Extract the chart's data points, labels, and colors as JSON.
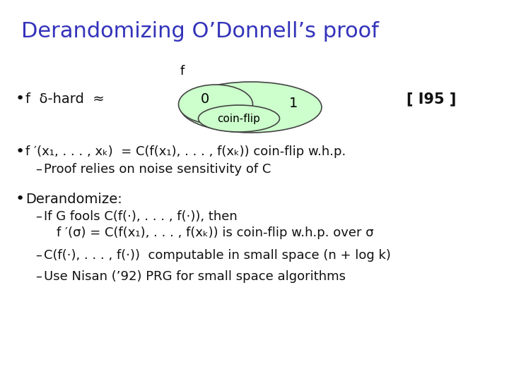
{
  "title": "Derandomizing O’Donnell’s proof",
  "title_color": "#3333bb",
  "title_fontsize": 22,
  "bg_color": "#ffffff",
  "text_color": "#111111",
  "ellipse_fill": "#ccffcc",
  "ellipse_edge": "#444444",
  "font_family": "DejaVu Sans",
  "bullet1_text": "f  δ-hard  ≈",
  "ref_text": "[ I95 ]",
  "ell_f": "f",
  "ell_0": "0",
  "ell_1": "1",
  "ell_coinflip": "coin-flip",
  "bullet2_text": "f ′(x₁, . . . , xₖ)  = C(f(x₁), . . . , f(xₖ)) coin-flip w.h.p.",
  "sub1_text": "Proof relies on noise sensitivity of C",
  "bullet3_text": "Derandomize:",
  "sub2a_text": "If G fools C(f(·), . . . , f(·)), then",
  "sub2b_text": "f ′(σ) = C(f(x₁), . . . , f(xₖ)) is coin-flip w.h.p. over σ",
  "sub3_text": "C(f(·), . . . , f(·))  computable in small space (n + log k)",
  "sub4_text": "Use Nisan (’92) PRG for small space algorithms"
}
